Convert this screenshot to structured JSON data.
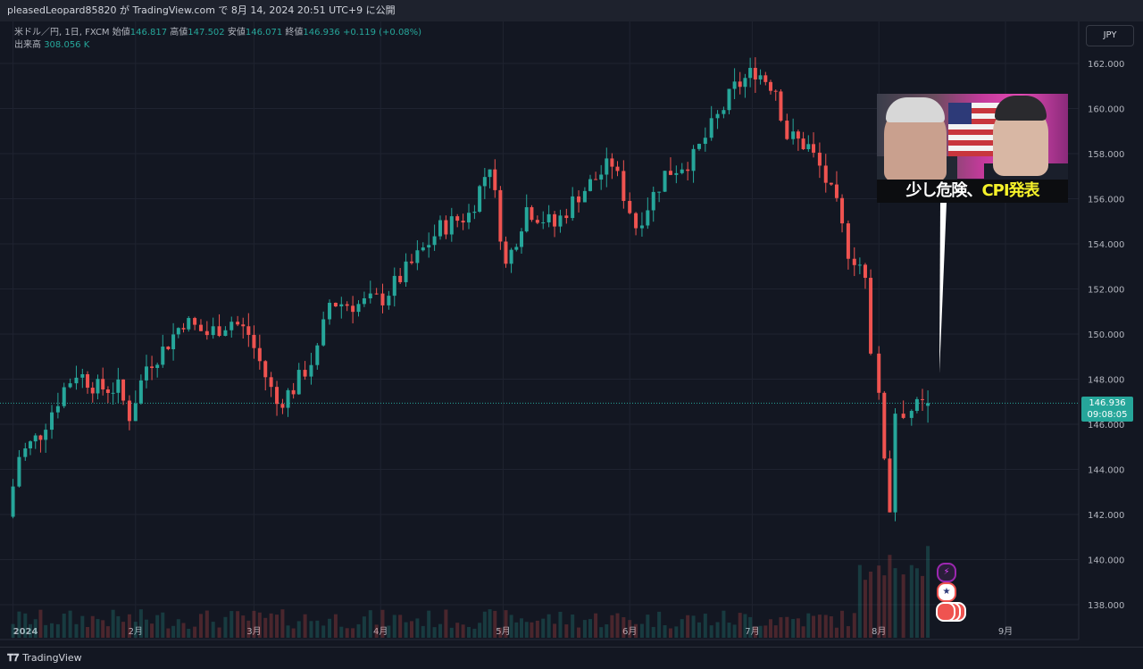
{
  "topbar": {
    "publish_text": "pleasedLeopard85820 が TradingView.com で 8月 14, 2024 20:51 UTC+9 に公開"
  },
  "legend": {
    "symbol": "米ドル／円, 1日, FXCM",
    "open_label": "始値",
    "open": "146.817",
    "high_label": "高値",
    "high": "147.502",
    "low_label": "安値",
    "low": "146.071",
    "close_label": "終値",
    "close": "146.936",
    "change": "+0.119 (+0.08%)",
    "volume_label": "出来高",
    "volume": "308.056 K"
  },
  "currency_button": "JPY",
  "price_tag": {
    "price": "146.936",
    "countdown": "09:08:05"
  },
  "thumbnail": {
    "caption_part1": "少し危険、",
    "caption_part2": "CPI発表"
  },
  "bottombar": {
    "brand": "TradingView"
  },
  "colors": {
    "up": "#26a69a",
    "down": "#ef5350",
    "background": "#131722",
    "grid": "#1f2330"
  },
  "chart_data": {
    "type": "candlestick",
    "pair": "USD/JPY",
    "timeframe": "1D",
    "y_ticks": [
      "162.000",
      "160.000",
      "158.000",
      "156.000",
      "154.000",
      "152.000",
      "150.000",
      "148.000",
      "146.000",
      "144.000",
      "142.000",
      "140.000",
      "138.000"
    ],
    "x_ticks": [
      "2024",
      "2月",
      "3月",
      "4月",
      "5月",
      "6月",
      "7月",
      "8月",
      "9月"
    ],
    "ylim": [
      137.0,
      163.0
    ],
    "path": [
      [
        "2024-01-02",
        141.9
      ],
      [
        "2024-01-05",
        144.6
      ],
      [
        "2024-01-10",
        145.6
      ],
      [
        "2024-01-16",
        147.6
      ],
      [
        "2024-01-19",
        148.3
      ],
      [
        "2024-01-24",
        147.6
      ],
      [
        "2024-01-29",
        147.6
      ],
      [
        "2024-02-01",
        146.4
      ],
      [
        "2024-02-05",
        148.6
      ],
      [
        "2024-02-09",
        149.3
      ],
      [
        "2024-02-14",
        150.6
      ],
      [
        "2024-02-20",
        150.0
      ],
      [
        "2024-02-26",
        150.6
      ],
      [
        "2024-03-01",
        150.0
      ],
      [
        "2024-03-08",
        146.9
      ],
      [
        "2024-03-12",
        147.6
      ],
      [
        "2024-03-18",
        149.2
      ],
      [
        "2024-03-21",
        151.4
      ],
      [
        "2024-03-28",
        151.3
      ],
      [
        "2024-04-03",
        151.6
      ],
      [
        "2024-04-10",
        153.1
      ],
      [
        "2024-04-17",
        154.7
      ],
      [
        "2024-04-24",
        155.3
      ],
      [
        "2024-04-29",
        157.6
      ],
      [
        "2024-05-03",
        153.0
      ],
      [
        "2024-05-08",
        155.6
      ],
      [
        "2024-05-15",
        154.8
      ],
      [
        "2024-05-21",
        156.2
      ],
      [
        "2024-05-29",
        157.6
      ],
      [
        "2024-06-04",
        154.8
      ],
      [
        "2024-06-11",
        157.1
      ],
      [
        "2024-06-18",
        157.8
      ],
      [
        "2024-06-24",
        159.6
      ],
      [
        "2024-06-28",
        160.9
      ],
      [
        "2024-07-03",
        161.7
      ],
      [
        "2024-07-08",
        160.9
      ],
      [
        "2024-07-11",
        158.8
      ],
      [
        "2024-07-16",
        158.3
      ],
      [
        "2024-07-19",
        157.4
      ],
      [
        "2024-07-23",
        155.6
      ],
      [
        "2024-07-26",
        153.7
      ],
      [
        "2024-07-30",
        152.8
      ],
      [
        "2024-08-01",
        149.4
      ],
      [
        "2024-08-05",
        142.3
      ],
      [
        "2024-08-07",
        146.6
      ],
      [
        "2024-08-09",
        146.6
      ],
      [
        "2024-08-13",
        146.8
      ],
      [
        "2024-08-14",
        146.9
      ]
    ],
    "last_candle": {
      "date": "2024-08-14",
      "open": 146.817,
      "high": 147.502,
      "low": 146.071,
      "close": 146.936
    }
  }
}
